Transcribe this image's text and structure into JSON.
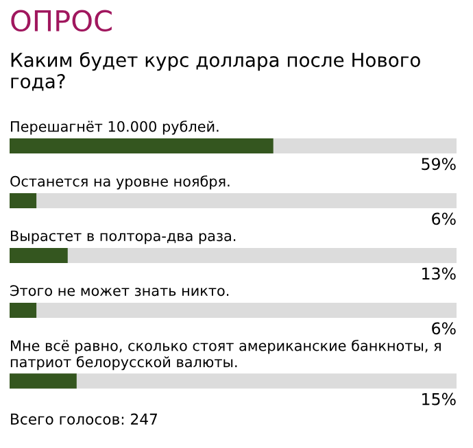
{
  "chart_data": {
    "type": "bar",
    "orientation": "horizontal",
    "title": "ОПРОС",
    "subtitle": "Каким будет курс доллара после Нового года?",
    "categories": [
      "Перешагнёт 10.000 рублей.",
      "Останется на уровне ноября.",
      "Вырастет в полтора-два раза.",
      "Этого не может знать никто.",
      "Мне всё равно, сколько стоят американские банкноты, я патриот белорусской валюты."
    ],
    "values": [
      59,
      6,
      13,
      6,
      15
    ],
    "value_labels": [
      "59%",
      "6%",
      "13%",
      "6%",
      "15%"
    ],
    "color": "#34561f",
    "xlim": [
      0,
      100
    ],
    "annotations": [
      "Всего голосов: 247"
    ]
  }
}
